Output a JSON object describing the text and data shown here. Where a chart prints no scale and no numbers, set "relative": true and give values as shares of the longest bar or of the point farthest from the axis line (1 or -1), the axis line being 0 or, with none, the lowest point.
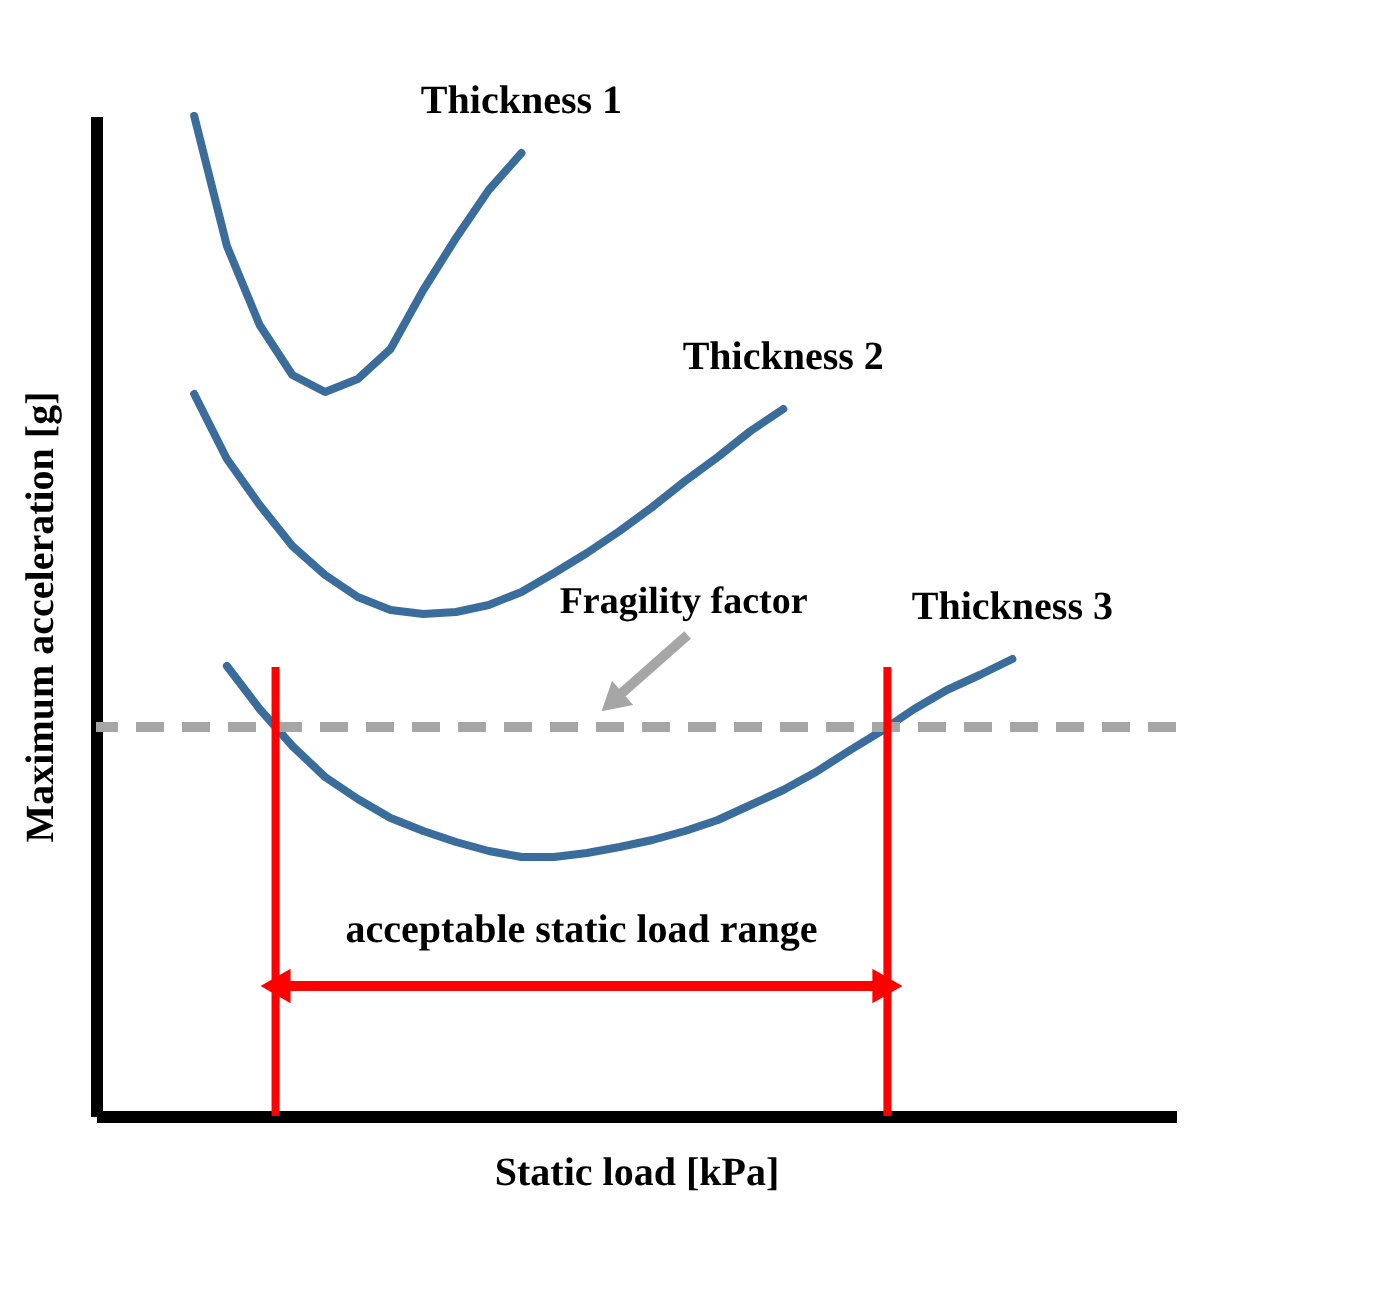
{
  "chart_data": {
    "type": "line",
    "relative": true,
    "xlabel": "Static load [kPa]",
    "ylabel": "Maximum acceleration [g]",
    "categories": [
      null,
      null,
      null,
      null,
      null,
      null,
      null,
      null,
      null,
      null,
      null,
      null,
      null,
      null,
      null,
      null,
      null,
      null,
      null,
      null,
      null,
      null,
      null,
      null,
      null,
      null,
      null,
      null,
      null,
      null,
      null,
      null,
      null,
      null
    ],
    "series": [
      {
        "name": "Thickness 1",
        "color": "#3a6d9c",
        "values": [
          null,
          null,
          null,
          1.0,
          0.87,
          0.791,
          0.741,
          0.724,
          0.737,
          0.767,
          0.826,
          0.878,
          0.926,
          0.963,
          null,
          null,
          null,
          null,
          null,
          null,
          null,
          null,
          null,
          null,
          null,
          null,
          null,
          null,
          null,
          null,
          null,
          null,
          null,
          null
        ]
      },
      {
        "name": "Thickness 2",
        "color": "#3a6d9c",
        "values": [
          null,
          null,
          null,
          0.722,
          0.657,
          0.611,
          0.57,
          0.541,
          0.519,
          0.506,
          0.502,
          0.504,
          0.511,
          0.524,
          0.543,
          0.563,
          0.585,
          0.609,
          0.635,
          0.659,
          0.685,
          0.707,
          null,
          null,
          null,
          null,
          null,
          null,
          null,
          null,
          null,
          null,
          null,
          null
        ]
      },
      {
        "name": "Thickness 3",
        "color": "#3a6d9c",
        "values": [
          null,
          null,
          null,
          null,
          0.45,
          0.407,
          0.37,
          0.339,
          0.317,
          0.298,
          0.285,
          0.274,
          0.265,
          0.259,
          0.259,
          0.263,
          0.269,
          0.276,
          0.285,
          0.296,
          0.311,
          0.326,
          0.344,
          0.365,
          0.385,
          0.407,
          0.426,
          0.441,
          0.457,
          null,
          null,
          null,
          null,
          null
        ]
      }
    ],
    "ref_lines": [
      {
        "axis": "y",
        "value": 0.389,
        "color": "#a6a6a6",
        "line_style": "dashed"
      }
    ],
    "annotations": [
      "Fragility factor",
      "acceptable static load range"
    ]
  }
}
